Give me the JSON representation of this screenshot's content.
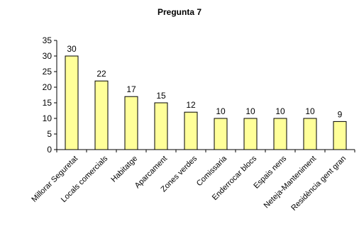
{
  "chart_data": {
    "type": "bar",
    "title": "Pregunta 7",
    "xlabel": "",
    "ylabel": "",
    "categories": [
      "Millorar Seguretat",
      "Locals comercials",
      "Habitatge",
      "Aparcament",
      "Zones verdes",
      "Comissaria",
      "Enderrocar blocs",
      "Espais nens",
      "Neteja-Manteniment",
      "Residència gent gran"
    ],
    "values": [
      30,
      22,
      17,
      15,
      12,
      10,
      10,
      10,
      10,
      9
    ],
    "data_labels": [
      "30",
      "22",
      "17",
      "15",
      "12",
      "10",
      "10",
      "10",
      "10",
      "9"
    ],
    "ylim": [
      0,
      35
    ],
    "yticks": [
      0,
      5,
      10,
      15,
      20,
      25,
      30,
      35
    ],
    "ytick_labels": [
      "0",
      "5",
      "10",
      "15",
      "20",
      "25",
      "30",
      "35"
    ],
    "grid": false,
    "legend": "none",
    "colors": {
      "bar_fill": "#FFFF99",
      "bar_stroke": "#000000",
      "axis": "#000000",
      "background": "#FFFFFF"
    }
  }
}
